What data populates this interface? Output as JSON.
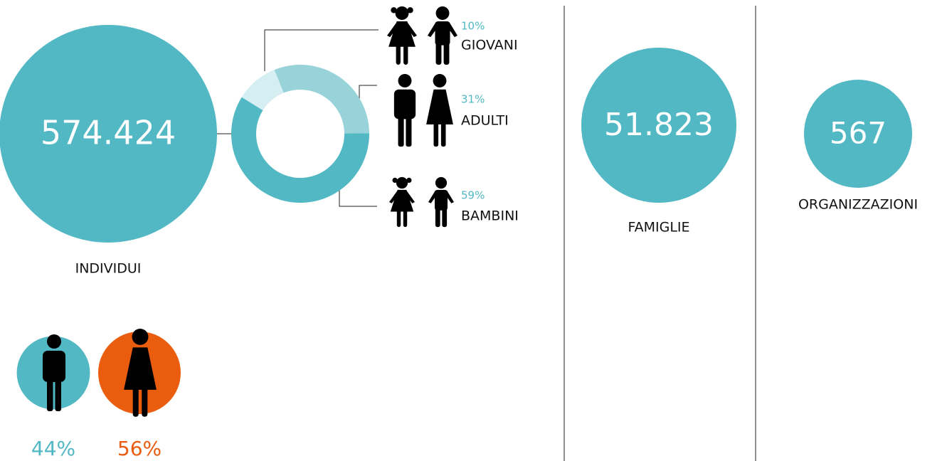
{
  "individui": {
    "value": "574.424",
    "label": "INDIVIDUI"
  },
  "age_groups": {
    "type": "donut",
    "categories": [
      "GIOVANI",
      "ADULTI",
      "BAMBINI"
    ],
    "values": [
      10,
      31,
      59
    ],
    "value_labels": [
      "10%",
      "31%",
      "59%"
    ],
    "colors": [
      "#d5eef1",
      "#98d3da",
      "#52b8c4"
    ]
  },
  "gender": {
    "values": [
      44,
      56
    ],
    "value_labels": [
      "44%",
      "56%"
    ],
    "colors": [
      "#52b8c4",
      "#ea5c0e"
    ]
  },
  "famiglie": {
    "value": "51.823",
    "label": "FAMIGLIE"
  },
  "organizzazioni": {
    "value": "567",
    "label": "ORGANIZZAZIONI"
  }
}
